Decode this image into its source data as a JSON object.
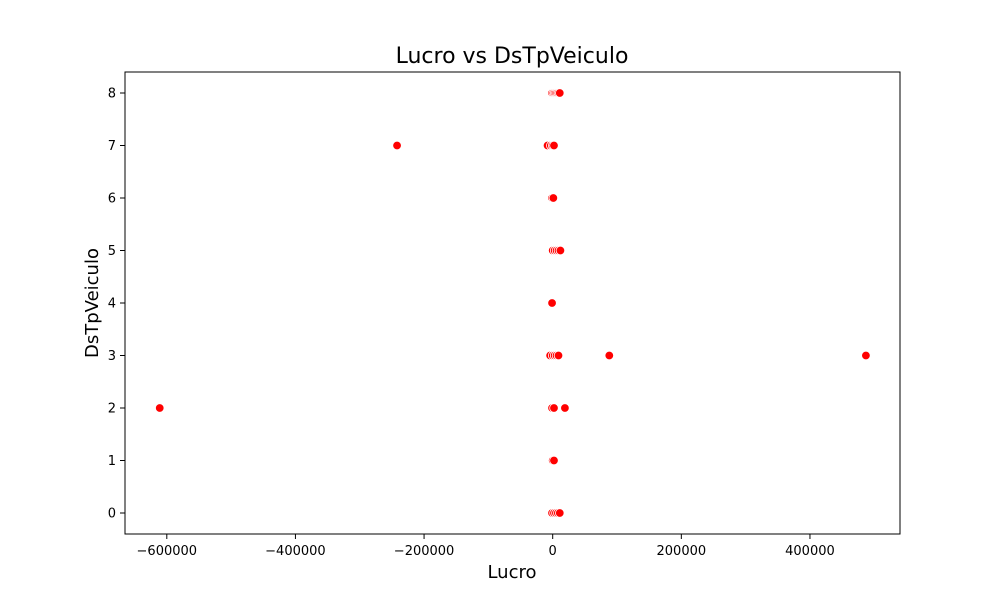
{
  "chart_data": {
    "type": "scatter",
    "title": "Lucro vs DsTpVeiculo",
    "xlabel": "Lucro",
    "ylabel": "DsTpVeiculo",
    "xlim": [
      -665000,
      540000
    ],
    "ylim": [
      -0.4,
      8.4
    ],
    "xticks": [
      -600000,
      -400000,
      -200000,
      0,
      200000,
      400000
    ],
    "xtick_labels": [
      "−600000",
      "−400000",
      "−200000",
      "0",
      "200000",
      "400000"
    ],
    "yticks": [
      0,
      1,
      2,
      3,
      4,
      5,
      6,
      7,
      8
    ],
    "ytick_labels": [
      "0",
      "1",
      "2",
      "3",
      "4",
      "5",
      "6",
      "7",
      "8"
    ],
    "grid": false,
    "marker_color": "#ff0000",
    "marker_edge_color": "#ffffff",
    "series": [
      {
        "points": [
          [
            -1000,
            8
          ],
          [
            1000,
            8
          ],
          [
            3000,
            8
          ],
          [
            5000,
            8
          ],
          [
            7000,
            8
          ],
          [
            9000,
            8
          ],
          [
            11000,
            8
          ],
          [
            -242000,
            7
          ],
          [
            -8000,
            7
          ],
          [
            -3000,
            7
          ],
          [
            0,
            7
          ],
          [
            2000,
            7
          ],
          [
            -1000,
            6
          ],
          [
            1000,
            6
          ],
          [
            0,
            5
          ],
          [
            3000,
            5
          ],
          [
            6000,
            5
          ],
          [
            9000,
            5
          ],
          [
            12000,
            5
          ],
          [
            -1000,
            4
          ],
          [
            -4000,
            3
          ],
          [
            0,
            3
          ],
          [
            3000,
            3
          ],
          [
            6000,
            3
          ],
          [
            9000,
            3
          ],
          [
            88000,
            3
          ],
          [
            487000,
            3
          ],
          [
            -611000,
            2
          ],
          [
            -1000,
            2
          ],
          [
            2000,
            2
          ],
          [
            19000,
            2
          ],
          [
            0,
            1
          ],
          [
            2000,
            1
          ],
          [
            -1000,
            0
          ],
          [
            2000,
            0
          ],
          [
            5000,
            0
          ],
          [
            8000,
            0
          ],
          [
            11000,
            0
          ]
        ]
      }
    ]
  }
}
